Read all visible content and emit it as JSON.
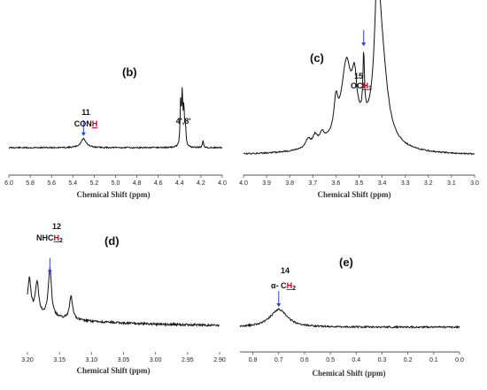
{
  "chart_data": [
    {
      "type": "line",
      "panel_label": "(b)",
      "xlabel": "Chemical Shift (ppm)",
      "xlim": [
        6.0,
        4.0
      ],
      "xticks": [
        "6.0",
        "5.8",
        "5.6",
        "5.4",
        "5.2",
        "5.0",
        "4.8",
        "4.6",
        "4.4",
        "4.2",
        "4.0"
      ],
      "annotations": [
        {
          "number": "11",
          "text": "CONH",
          "highlight": "H",
          "x": 5.3
        },
        {
          "text": "4',8'",
          "x": 4.38
        }
      ],
      "peaks": [
        {
          "x": 5.3,
          "height": 0.06,
          "width": 0.03
        },
        {
          "x": 4.39,
          "height": 0.28,
          "width": 0.006
        },
        {
          "x": 4.375,
          "height": 0.34,
          "width": 0.006
        },
        {
          "x": 4.36,
          "height": 0.24,
          "width": 0.006
        },
        {
          "x": 4.345,
          "height": 0.12,
          "width": 0.006
        },
        {
          "x": 4.18,
          "height": 0.05,
          "width": 0.006
        }
      ]
    },
    {
      "type": "line",
      "panel_label": "(c)",
      "xlabel": "Chemical Shift (ppm)",
      "xlim": [
        4.0,
        3.0
      ],
      "xticks": [
        "4.0",
        "3.9",
        "3.8",
        "3.7",
        "3.6",
        "3.5",
        "3.4",
        "3.3",
        "3.2",
        "3.1",
        "3.0"
      ],
      "annotations": [
        {
          "number": "15",
          "text": "OCH",
          "highlight": "H",
          "subscript": "3",
          "x": 3.48
        }
      ],
      "peaks": [
        {
          "x": 3.72,
          "height": 0.06,
          "width": 0.012
        },
        {
          "x": 3.69,
          "height": 0.07,
          "width": 0.012
        },
        {
          "x": 3.66,
          "height": 0.07,
          "width": 0.012
        },
        {
          "x": 3.6,
          "height": 0.22,
          "width": 0.01
        },
        {
          "x": 3.555,
          "height": 0.5,
          "width": 0.025
        },
        {
          "x": 3.52,
          "height": 0.3,
          "width": 0.012
        },
        {
          "x": 3.48,
          "height": 0.45,
          "width": 0.004
        },
        {
          "x": 3.42,
          "height": 0.95,
          "width": 0.015
        },
        {
          "x": 3.4,
          "height": 0.5,
          "width": 0.03
        },
        {
          "x": 3.52,
          "height": 0.15,
          "width": 0.12
        }
      ]
    },
    {
      "type": "line",
      "panel_label": "(d)",
      "xlabel": "Chemical Shift (ppm)",
      "xlim": [
        3.2,
        2.9
      ],
      "xticks": [
        "3.20",
        "3.15",
        "3.10",
        "3.05",
        "3.00",
        "2.95",
        "2.90"
      ],
      "annotations": [
        {
          "number": "12",
          "text": "NHCH",
          "highlight": "H",
          "subscript": "2",
          "x": 3.165
        }
      ],
      "peaks": [
        {
          "x": 3.197,
          "height": 0.42,
          "width": 0.003
        },
        {
          "x": 3.185,
          "height": 0.4,
          "width": 0.003
        },
        {
          "x": 3.165,
          "height": 0.6,
          "width": 0.003
        },
        {
          "x": 3.132,
          "height": 0.3,
          "width": 0.003
        }
      ]
    },
    {
      "type": "line",
      "panel_label": "(e)",
      "xlabel": "Chemical Shift (ppm)",
      "xlim": [
        0.85,
        0.0
      ],
      "xticks": [
        "0.8",
        "0.7",
        "0.6",
        "0.5",
        "0.4",
        "0.3",
        "0.2",
        "0.1",
        "0.0"
      ],
      "annotations": [
        {
          "number": "14",
          "text": "α- CH",
          "highlight": "H",
          "subscript": "2",
          "x": 0.7
        }
      ],
      "peaks": [
        {
          "x": 0.7,
          "height": 0.2,
          "width": 0.04
        }
      ]
    }
  ]
}
